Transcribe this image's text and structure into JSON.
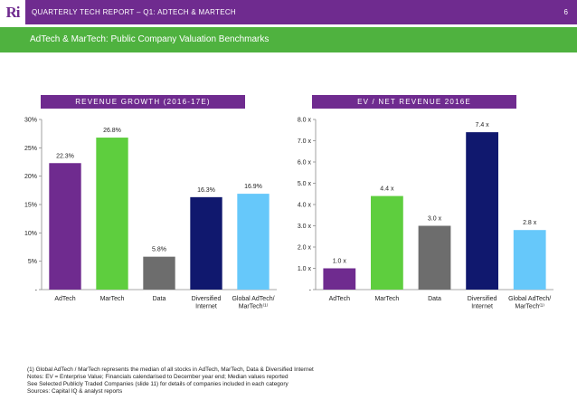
{
  "header": {
    "logo": "Ri",
    "report_title": "QUARTERLY TECH REPORT – Q1: ADTECH & MARTECH",
    "page_number": "6"
  },
  "subheader": {
    "title": "AdTech & MarTech: Public Company Valuation Benchmarks"
  },
  "colors": {
    "header_bg": "#6f2b8f",
    "subheader_bg": "#4fb23f"
  },
  "chart_data": [
    {
      "type": "bar",
      "title": "REVENUE GROWTH (2016-17E)",
      "categories": [
        "AdTech",
        "MarTech",
        "Data",
        "Diversified Internet",
        "Global AdTech/ MarTech⁽¹⁾"
      ],
      "category_lines": [
        [
          "AdTech"
        ],
        [
          "MarTech"
        ],
        [
          "Data"
        ],
        [
          "Diversified",
          "Internet"
        ],
        [
          "Global AdTech/",
          "MarTech⁽¹⁾"
        ]
      ],
      "values": [
        22.3,
        26.8,
        5.8,
        16.3,
        16.9
      ],
      "data_labels": [
        "22.3%",
        "26.8%",
        "5.8%",
        "16.3%",
        "16.9%"
      ],
      "colors": [
        "#6f2b8f",
        "#5ece3e",
        "#6d6d6d",
        "#10186e",
        "#66c8fa"
      ],
      "ylim": [
        0,
        30
      ],
      "yticks": [
        0,
        5,
        10,
        15,
        20,
        25,
        30
      ],
      "ytick_labels": [
        "-",
        "5%",
        "10%",
        "15%",
        "20%",
        "25%",
        "30%"
      ],
      "xlabel": "",
      "ylabel": "",
      "grid": false,
      "legend": "none"
    },
    {
      "type": "bar",
      "title": "EV / NET REVENUE 2016E",
      "categories": [
        "AdTech",
        "MarTech",
        "Data",
        "Diversified Internet",
        "Global AdTech/ MarTech⁽¹⁾"
      ],
      "category_lines": [
        [
          "AdTech"
        ],
        [
          "MarTech"
        ],
        [
          "Data"
        ],
        [
          "Diversified",
          "Internet"
        ],
        [
          "Global AdTech/",
          "MarTech⁽¹⁾"
        ]
      ],
      "values": [
        1.0,
        4.4,
        3.0,
        7.4,
        2.8
      ],
      "data_labels": [
        "1.0 x",
        "4.4 x",
        "3.0 x",
        "7.4 x",
        "2.8 x"
      ],
      "colors": [
        "#6f2b8f",
        "#5ece3e",
        "#6d6d6d",
        "#10186e",
        "#66c8fa"
      ],
      "ylim": [
        0,
        8
      ],
      "yticks": [
        0,
        1,
        2,
        3,
        4,
        5,
        6,
        7,
        8
      ],
      "ytick_labels": [
        "-",
        "1.0 x",
        "2.0 x",
        "3.0 x",
        "4.0 x",
        "5.0 x",
        "6.0 x",
        "7.0 x",
        "8.0 x"
      ],
      "xlabel": "",
      "ylabel": "",
      "grid": false,
      "legend": "none"
    }
  ],
  "footnotes": [
    "(1) Global AdTech / MarTech represents the median of all stocks in AdTech, MarTech, Data & Diversified Internet",
    "Notes: EV = Enterprise Value; Financials calendarised to December year end; Median values reported",
    "See Selected Publicly Traded Companies (slide 11) for details of companies included in each category",
    "Sources: Capital IQ & analyst reports"
  ]
}
